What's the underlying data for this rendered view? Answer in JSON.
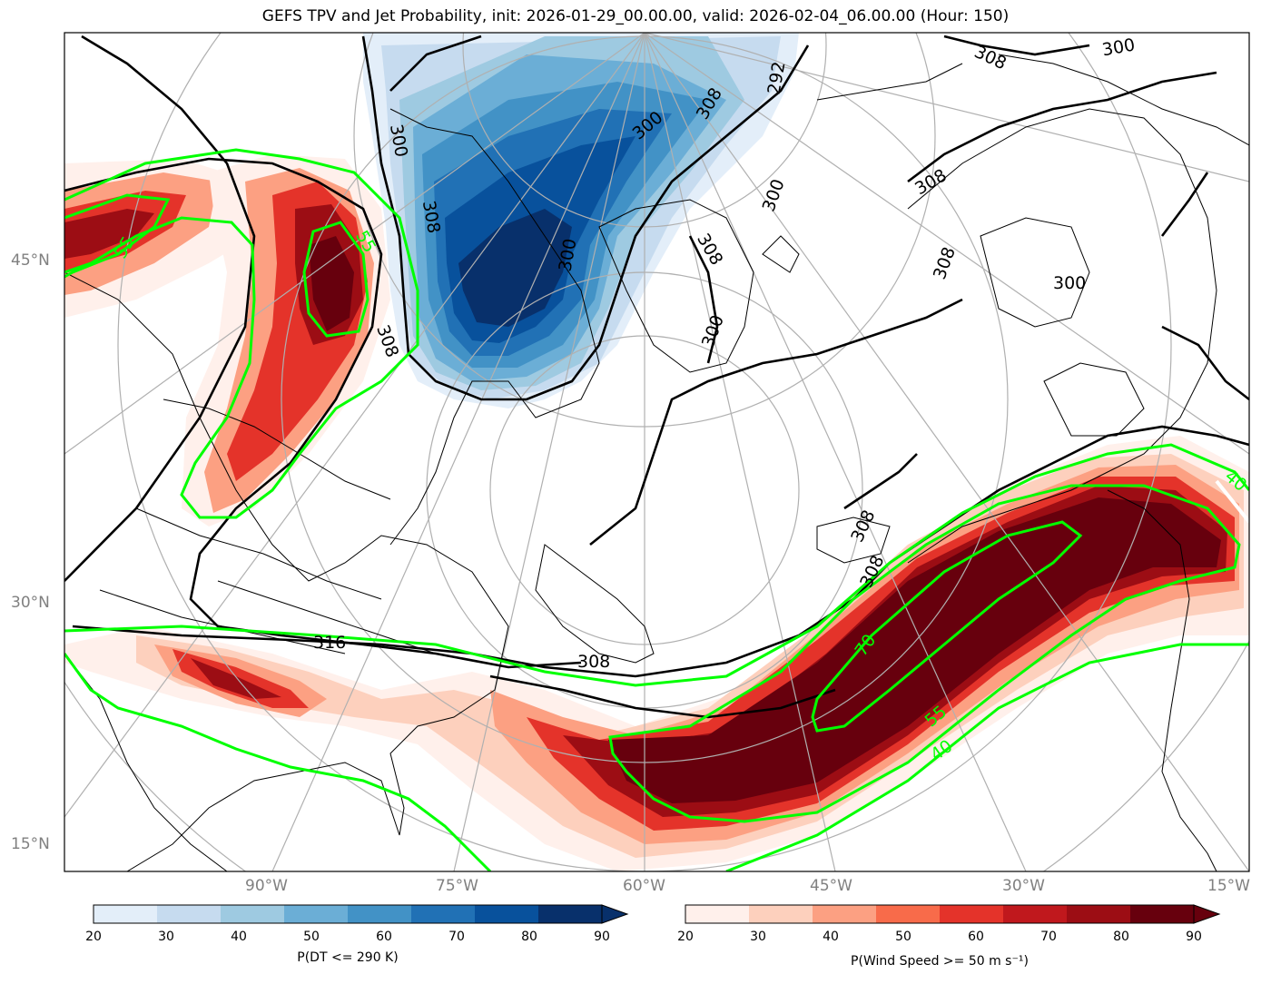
{
  "title": "GEFS TPV and Jet Probability, init: 2026-01-29_00.00.00, valid: 2026-02-04_06.00.00 (Hour: 150)",
  "axes": {
    "lat_labels": [
      "45°N",
      "30°N",
      "15°N"
    ],
    "lon_labels": [
      "90°W",
      "75°W",
      "60°W",
      "45°W",
      "30°W",
      "15°W"
    ]
  },
  "contours": {
    "theta_labels": [
      "300",
      "308",
      "308",
      "300",
      "300",
      "308",
      "308",
      "316",
      "308",
      "308",
      "308",
      "300",
      "300",
      "292",
      "300",
      "308",
      "300",
      "308",
      "308"
    ],
    "jet_labels": [
      "55",
      "55",
      "70",
      "55",
      "40",
      "40"
    ]
  },
  "colorbars": [
    {
      "label": "P(DT <= 290 K)",
      "ticks": [
        "20",
        "30",
        "40",
        "50",
        "60",
        "70",
        "80",
        "90"
      ],
      "colors": [
        "#e3eef9",
        "#c6dbef",
        "#9ecae1",
        "#6baed6",
        "#4292c6",
        "#2171b5",
        "#08519c",
        "#08306b"
      ],
      "extend_color": "#08306b"
    },
    {
      "label": "P(Wind Speed >= 50 m s⁻¹)",
      "ticks": [
        "20",
        "30",
        "40",
        "50",
        "60",
        "70",
        "80",
        "90"
      ],
      "colors": [
        "#fff0eb",
        "#fdd0bd",
        "#fca082",
        "#f86b4a",
        "#e4332a",
        "#c0181d",
        "#9c0d14",
        "#67000d"
      ],
      "extend_color": "#67000d"
    }
  ]
}
